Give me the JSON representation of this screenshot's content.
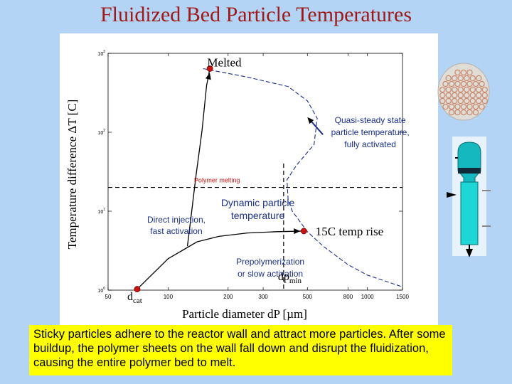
{
  "slide": {
    "title": "Fluidized Bed Particle Temperatures",
    "note": "Sticky particles adhere to the reactor wall and attract more particles. After some buildup, the polymer sheets on the wall fall down and disrupt the fluidization, causing the entire polymer bed to melt."
  },
  "chart_data": {
    "type": "line",
    "title": "",
    "xlabel": "Particle diameter dP [µm]",
    "ylabel": "Temperature difference ΔT [C]",
    "xscale": "log",
    "yscale": "log",
    "xlim": [
      50,
      1500
    ],
    "ylim": [
      1,
      1000
    ],
    "x_ticks": [
      "50",
      "100",
      "200",
      "300",
      "500",
      "800",
      "1000",
      "1500"
    ],
    "y_ticks": [
      "10^0",
      "10^1",
      "10^2",
      "10^3"
    ],
    "grid": false,
    "series": [
      {
        "style": "dashed",
        "color": "#1a2f8a",
        "points": [
          [
            150,
            640
          ],
          [
            250,
            500
          ],
          [
            400,
            380
          ],
          [
            500,
            250
          ],
          [
            560,
            150
          ],
          [
            540,
            70
          ],
          [
            440,
            38
          ],
          [
            395,
            25
          ],
          [
            400,
            14
          ],
          [
            420,
            10
          ],
          [
            500,
            5.5
          ],
          [
            600,
            3.6
          ],
          [
            800,
            2.1
          ],
          [
            1000,
            1.55
          ],
          [
            1500,
            1.1
          ]
        ]
      },
      {
        "style": "solid",
        "color": "#000000",
        "points": [
          [
            70,
            1.03
          ],
          [
            100,
            2.5
          ],
          [
            140,
            4.1
          ],
          [
            180,
            4.8
          ],
          [
            250,
            5.3
          ],
          [
            350,
            5.5
          ],
          [
            480,
            5.6
          ]
        ]
      },
      {
        "style": "solid",
        "color": "#000000",
        "points": [
          [
            125,
            3.6
          ],
          [
            130,
            8
          ],
          [
            138,
            28
          ],
          [
            148,
            105
          ],
          [
            156,
            390
          ],
          [
            162,
            640
          ]
        ]
      }
    ],
    "markers": [
      [
        70,
        1.03
      ],
      [
        162,
        640
      ],
      [
        480,
        5.6
      ]
    ],
    "reference_lines": [
      {
        "orientation": "horizontal",
        "y": 20
      },
      {
        "orientation": "vertical",
        "x": 380
      }
    ],
    "annotations": {
      "melted": "Melted",
      "quasi_steady": "Quasi-steady state particle temperature, fully activated",
      "polymer_melting": "Polymer melting",
      "direct_injection": "Direct injection, fast activation",
      "dynamic": "Dynamic particle temperature",
      "temp_rise": "15C temp rise",
      "prepolymerization": "Prepolymerization or slow activation",
      "dp_min": "dpmin",
      "d_cat": "dcat"
    }
  },
  "colors": {
    "background": "#b3d4f5",
    "title": "#a01818",
    "note_bg": "#ffff00",
    "marker": "#cc1111",
    "curve": "#1a2f8a",
    "polymer_melting": "#cc1111",
    "reactor": "#1fd6d6"
  },
  "icons": {
    "particle_cluster": "particle-cluster-icon",
    "reactor": "reactor-icon"
  }
}
